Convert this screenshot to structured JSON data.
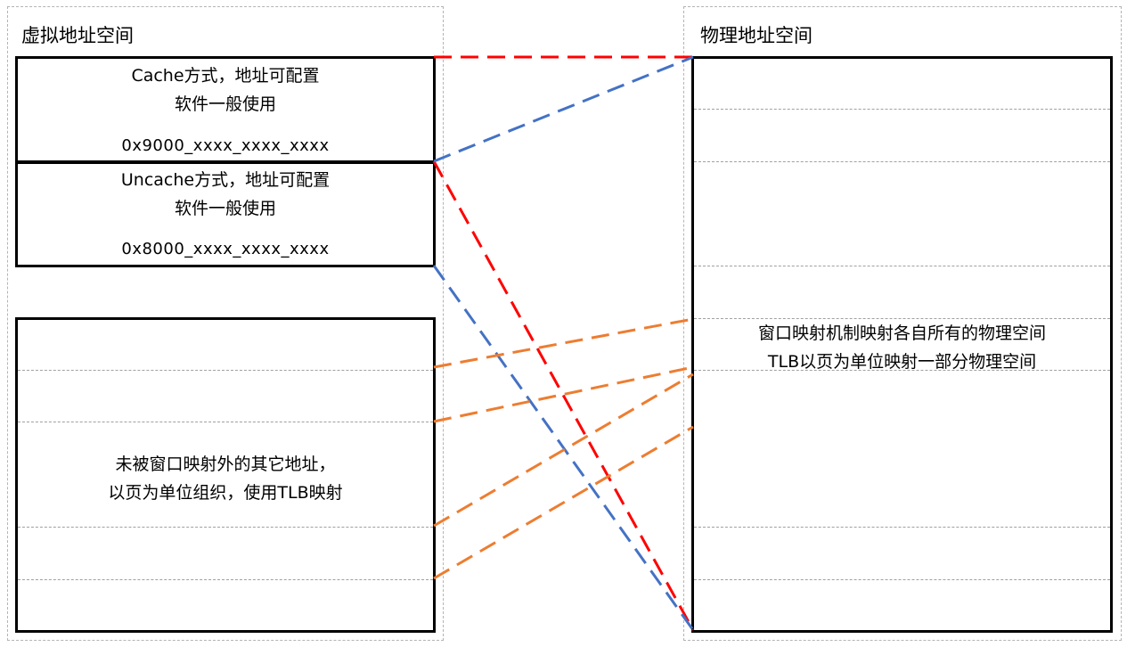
{
  "virtual": {
    "title": "虚拟地址空间",
    "cache_window": {
      "line1": "Cache方式，地址可配置",
      "line2": "软件一般使用",
      "address": "0x9000_xxxx_xxxx_xxxx"
    },
    "uncache_window": {
      "line1": "Uncache方式，地址可配置",
      "line2": "软件一般使用",
      "address": "0x8000_xxxx_xxxx_xxxx"
    },
    "tlb_region": {
      "line1": "未被窗口映射外的其它地址，",
      "line2": "以页为单位组织，使用TLB映射"
    }
  },
  "physical": {
    "title": "物理地址空间",
    "line1": "窗口映射机制映射各自所有的物理空间",
    "line2": "TLB以页为单位映射一部分物理空间"
  },
  "colors": {
    "cache_mapping": "#ff0000",
    "uncache_mapping": "#4472c4",
    "tlb_mapping": "#ed7d31"
  }
}
